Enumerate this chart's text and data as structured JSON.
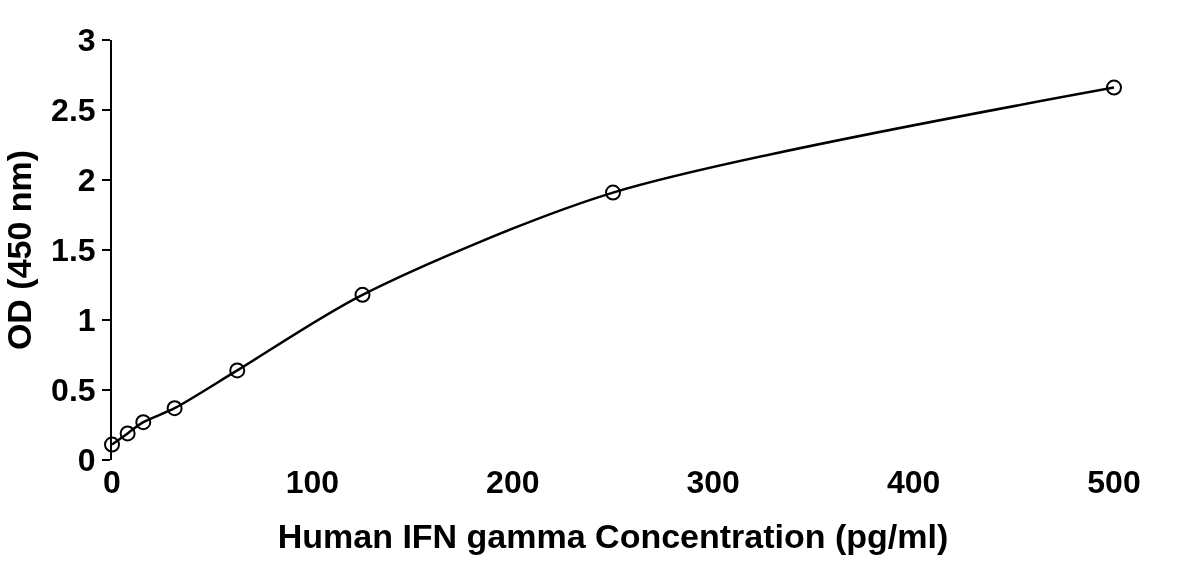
{
  "chart_data": {
    "type": "scatter",
    "xlabel": "Human IFN gamma Concentration (pg/ml)",
    "ylabel": "OD (450 nm)",
    "series": [
      {
        "color": "#000000",
        "marker": "circle",
        "x": [
          0,
          7.8,
          15.6,
          31.25,
          62.5,
          125,
          250,
          500
        ],
        "values": [
          0.11,
          0.19,
          0.27,
          0.37,
          0.64,
          1.18,
          1.91,
          2.66
        ]
      },
      {
        "type": "line",
        "color": "#000000",
        "marker": "none",
        "line_style": "solid",
        "x": [
          0,
          7.8,
          15.6,
          31.25,
          62.5,
          125,
          250,
          500
        ],
        "values": [
          0.11,
          0.19,
          0.27,
          0.37,
          0.64,
          1.18,
          1.91,
          2.66
        ]
      }
    ],
    "xlim": [
      0,
      500
    ],
    "xticks": [
      0,
      100,
      200,
      300,
      400,
      500
    ],
    "ylim": [
      0,
      3
    ],
    "yticks": [
      0,
      0.5,
      1,
      1.5,
      2,
      2.5,
      3
    ]
  }
}
